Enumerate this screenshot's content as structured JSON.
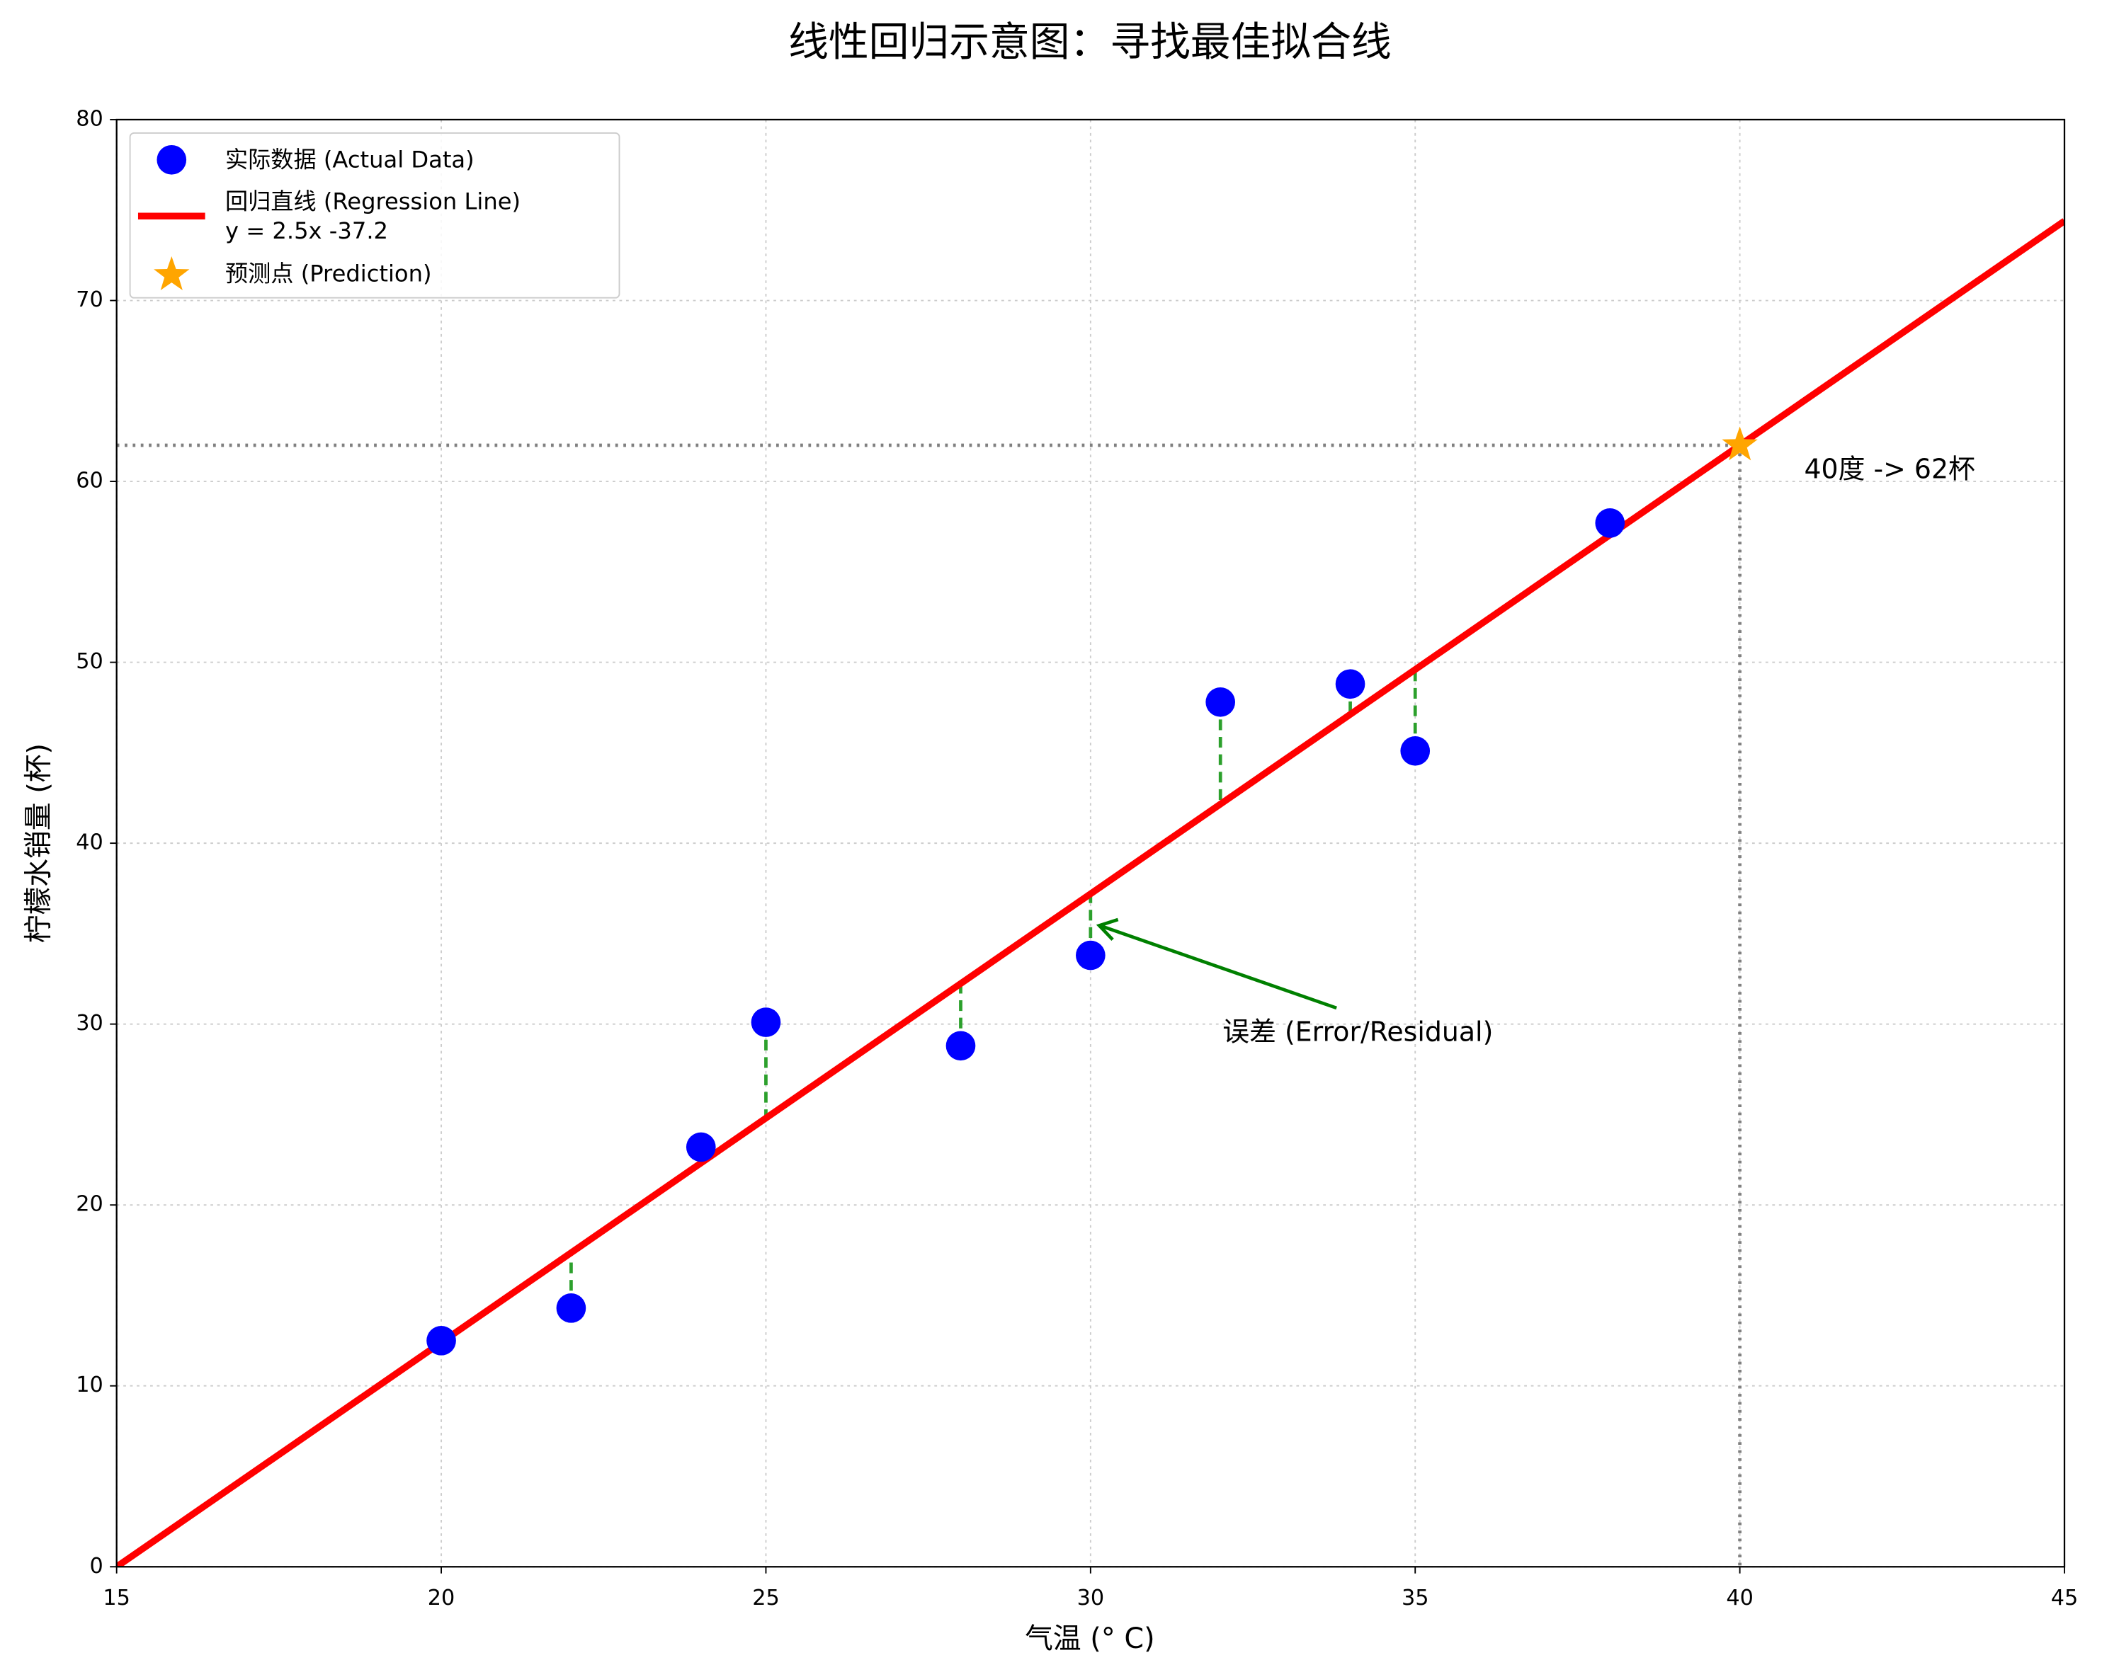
{
  "chart_data": {
    "type": "scatter",
    "title": "线性回归示意图：寻找最佳拟合线",
    "x_label": "气温 (° C)",
    "y_label": "柠檬水销量 (杯)",
    "xlim": [
      15,
      45
    ],
    "xticks": [
      15,
      20,
      25,
      30,
      35,
      40,
      45
    ],
    "ylim": [
      0,
      80
    ],
    "yticks": [
      0,
      10,
      20,
      30,
      40,
      50,
      60,
      70,
      80
    ],
    "grid": true,
    "legend": "upper left",
    "series": [
      {
        "name": "实际数据 (Actual Data)",
        "color": "#0000ff",
        "kind": "scatter",
        "x": [
          20,
          22,
          24,
          25,
          28,
          30,
          32,
          34,
          35,
          38
        ],
        "values": [
          12.5,
          14.3,
          23.2,
          30.1,
          28.8,
          33.8,
          47.8,
          48.8,
          45.1,
          57.7
        ]
      },
      {
        "name": "回归直线 (Regression Line)",
        "equation": "y = 2.5x -37.2",
        "color": "#ff0000",
        "kind": "line",
        "x": [
          15,
          45
        ],
        "values": [
          0,
          74.4
        ]
      },
      {
        "name": "预测点 (Prediction)",
        "color": "#ffa500",
        "kind": "star",
        "x": [
          40
        ],
        "values": [
          62
        ]
      }
    ],
    "residual_color": "#2ca02c",
    "annotations": [
      {
        "text": "40度 -> 62杯",
        "color": "#ffa500"
      },
      {
        "text": "误差 (Error/Residual)",
        "color": "#008000"
      }
    ]
  }
}
